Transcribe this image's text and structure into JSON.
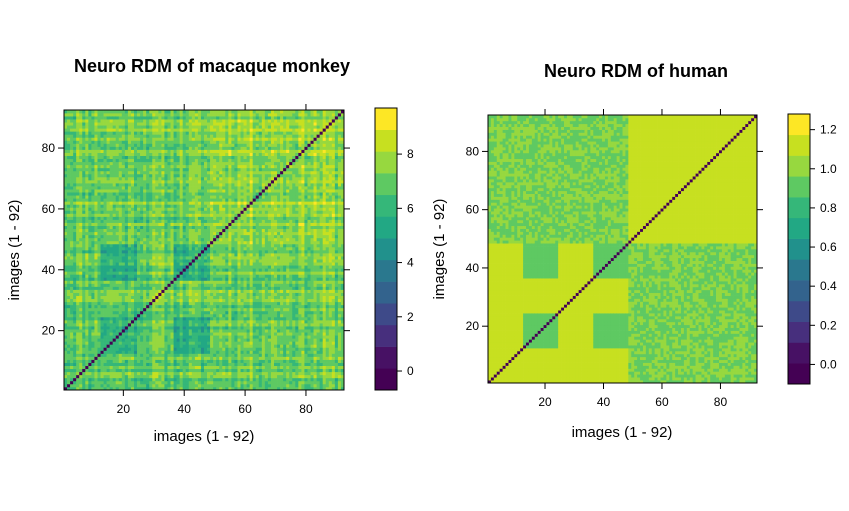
{
  "chart_data": [
    {
      "type": "heatmap",
      "title": "Neuro RDM of macaque monkey",
      "xlabel": "images (1 - 92)",
      "ylabel": "images (1 - 92)",
      "n": 92,
      "x_ticks": [
        20,
        40,
        60,
        80
      ],
      "y_ticks": [
        20,
        40,
        60,
        80
      ],
      "colorbar": {
        "min": -0.7,
        "max": 9.7,
        "ticks": [
          "0",
          "2",
          "4",
          "6",
          "8"
        ],
        "tick_values": [
          0,
          2,
          4,
          6,
          8
        ]
      },
      "diagonal_value": 0,
      "block_values": {
        "animate": 7.0,
        "inanimate": 7.8,
        "cross": 7.2,
        "dark_blocks": 5.6
      },
      "noise": 1.1
    },
    {
      "type": "heatmap",
      "title": "Neuro RDM of human",
      "xlabel": "images (1 - 92)",
      "ylabel": "images (1 - 92)",
      "n": 92,
      "x_ticks": [
        20,
        40,
        60,
        80
      ],
      "y_ticks": [
        20,
        40,
        60,
        80
      ],
      "colorbar": {
        "min": -0.1,
        "max": 1.28,
        "ticks": [
          "0.0",
          "0.2",
          "0.4",
          "0.6",
          "0.8",
          "1.0",
          "1.2"
        ],
        "tick_values": [
          0,
          0.2,
          0.4,
          0.6,
          0.8,
          1.0,
          1.2
        ]
      },
      "diagonal_value": 0,
      "block_values": {
        "animate": 1.13,
        "inanimate": 1.13,
        "cross": 0.96,
        "dark_blocks": 0.9
      },
      "noise": 0.05
    }
  ],
  "colors": {
    "palette": [
      "#440154",
      "#471164",
      "#472F7D",
      "#3E4A89",
      "#33638D",
      "#2A788E",
      "#21918C",
      "#22A884",
      "#35B779",
      "#5EC962",
      "#97D83F",
      "#C7E020",
      "#FDE725"
    ]
  }
}
